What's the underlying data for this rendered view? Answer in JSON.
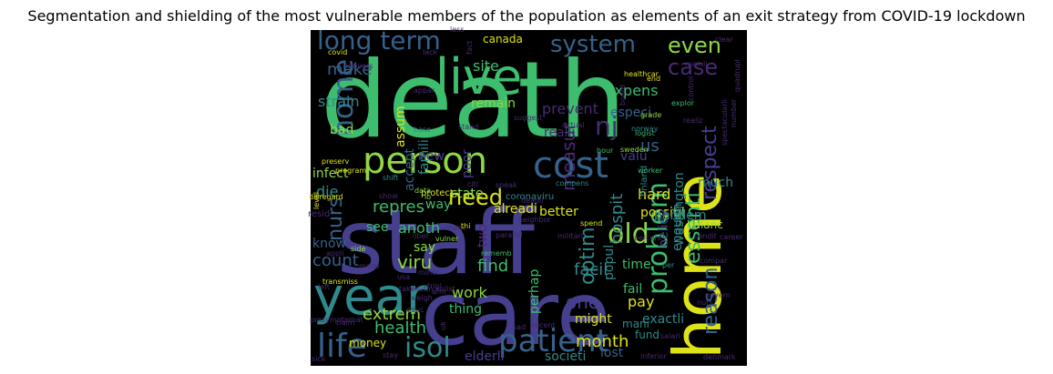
{
  "title": "Segmentation and shielding of the most vulnerable members of the population as elements of an exit strategy from COVID-19 lockdown",
  "background_color": "#000000",
  "palette": {
    "green": "#3dbd6e",
    "yellow": "#dde318",
    "indigo": "#453f8e",
    "teal": "#2f8a8c",
    "blue": "#35618b",
    "purple": "#482b72",
    "lime": "#8fd744"
  },
  "words": [
    {
      "text": "death",
      "color": "green"
    },
    {
      "text": "staff",
      "color": "indigo"
    },
    {
      "text": "care",
      "color": "indigo"
    },
    {
      "text": "home",
      "color": "yellow"
    },
    {
      "text": "year",
      "color": "teal"
    },
    {
      "text": "live",
      "color": "green"
    },
    {
      "text": "person",
      "color": "lime"
    },
    {
      "text": "cost",
      "color": "blue"
    },
    {
      "text": "life",
      "color": "blue"
    },
    {
      "text": "patient",
      "color": "blue"
    },
    {
      "text": "isol",
      "color": "teal"
    },
    {
      "text": "home",
      "color": "blue"
    },
    {
      "text": "long term",
      "color": "blue"
    },
    {
      "text": "system",
      "color": "blue"
    },
    {
      "text": "even",
      "color": "lime"
    },
    {
      "text": "case",
      "color": "purple"
    },
    {
      "text": "nj",
      "color": "purple"
    },
    {
      "text": "need",
      "color": "yellow"
    },
    {
      "text": "old",
      "color": "lime"
    },
    {
      "text": "problem",
      "color": "green"
    },
    {
      "text": "respect",
      "color": "indigo"
    },
    {
      "text": "essenti",
      "color": "green"
    },
    {
      "text": "reason",
      "color": "blue"
    },
    {
      "text": "nurs",
      "color": "blue"
    },
    {
      "text": "make",
      "color": "blue"
    },
    {
      "text": "site",
      "color": "green"
    },
    {
      "text": "prevent",
      "color": "purple"
    },
    {
      "text": "expens",
      "color": "green"
    },
    {
      "text": "especi",
      "color": "blue"
    },
    {
      "text": "strain",
      "color": "teal"
    },
    {
      "text": "bad",
      "color": "lime"
    },
    {
      "text": "remain",
      "color": "lime"
    },
    {
      "text": "realli",
      "color": "purple"
    },
    {
      "text": "measur",
      "color": "purple"
    },
    {
      "text": "hard",
      "color": "yellow"
    },
    {
      "text": "possibl",
      "color": "yellow"
    },
    {
      "text": "us",
      "color": "blue"
    },
    {
      "text": "assum",
      "color": "yellow"
    },
    {
      "text": "accept",
      "color": "blue"
    },
    {
      "text": "new",
      "color": "indigo"
    },
    {
      "text": "famili",
      "color": "teal"
    },
    {
      "text": "poor",
      "color": "indigo"
    },
    {
      "text": "valu",
      "color": "indigo"
    },
    {
      "text": "infect",
      "color": "lime"
    },
    {
      "text": "die",
      "color": "teal"
    },
    {
      "text": "state",
      "color": "lime"
    },
    {
      "text": "pandem",
      "color": "teal"
    },
    {
      "text": "hospit",
      "color": "teal"
    },
    {
      "text": "much",
      "color": "teal"
    },
    {
      "text": "way",
      "color": "green"
    },
    {
      "text": "repres",
      "color": "green"
    },
    {
      "text": "alreadi",
      "color": "yellow"
    },
    {
      "text": "better",
      "color": "yellow"
    },
    {
      "text": "see",
      "color": "green"
    },
    {
      "text": "anoth",
      "color": "green"
    },
    {
      "text": "say",
      "color": "lime"
    },
    {
      "text": "two",
      "color": "purple"
    },
    {
      "text": "know",
      "color": "blue"
    },
    {
      "text": "count",
      "color": "blue"
    },
    {
      "text": "viru",
      "color": "lime"
    },
    {
      "text": "find",
      "color": "green"
    },
    {
      "text": "facil",
      "color": "teal"
    },
    {
      "text": "optim",
      "color": "teal"
    },
    {
      "text": "popul",
      "color": "teal"
    },
    {
      "text": "time",
      "color": "green"
    },
    {
      "text": "believ",
      "color": "indigo"
    },
    {
      "text": "enough",
      "color": "teal"
    },
    {
      "text": "washington",
      "color": "teal"
    },
    {
      "text": "balanc",
      "color": "lime"
    },
    {
      "text": "extrem",
      "color": "lime"
    },
    {
      "text": "health",
      "color": "green"
    },
    {
      "text": "money",
      "color": "yellow"
    },
    {
      "text": "work",
      "color": "lime"
    },
    {
      "text": "thing",
      "color": "green"
    },
    {
      "text": "perhap",
      "color": "green"
    },
    {
      "text": "one",
      "color": "indigo"
    },
    {
      "text": "fail",
      "color": "green"
    },
    {
      "text": "pay",
      "color": "yellow"
    },
    {
      "text": "might",
      "color": "yellow"
    },
    {
      "text": "exactli",
      "color": "teal"
    },
    {
      "text": "fund",
      "color": "teal"
    },
    {
      "text": "mani",
      "color": "teal"
    },
    {
      "text": "month",
      "color": "yellow"
    },
    {
      "text": "lost",
      "color": "blue"
    },
    {
      "text": "elderli",
      "color": "indigo"
    },
    {
      "text": "societi",
      "color": "teal"
    },
    {
      "text": "canada",
      "color": "yellow"
    },
    {
      "text": "coronaviru",
      "color": "teal"
    },
    {
      "text": "protect",
      "color": "yellow"
    },
    {
      "text": "resid",
      "color": "purple"
    },
    {
      "text": "shift",
      "color": "teal"
    },
    {
      "text": "disregard",
      "color": "yellow"
    },
    {
      "text": "hour",
      "color": "green"
    },
    {
      "text": "logist",
      "color": "green"
    },
    {
      "text": "grade",
      "color": "lime"
    },
    {
      "text": "worker",
      "color": "green"
    },
    {
      "text": "sweden",
      "color": "lime"
    },
    {
      "text": "finland",
      "color": "teal"
    },
    {
      "text": "healthcar",
      "color": "yellow"
    },
    {
      "text": "explor",
      "color": "green"
    },
    {
      "text": "control",
      "color": "purple"
    },
    {
      "text": "suggest",
      "color": "purple"
    },
    {
      "text": "actual",
      "color": "purple"
    },
    {
      "text": "board",
      "color": "purple"
    },
    {
      "text": "lack",
      "color": "purple"
    },
    {
      "text": "fact",
      "color": "purple"
    },
    {
      "text": "end",
      "color": "yellow"
    },
    {
      "text": "norway",
      "color": "teal"
    },
    {
      "text": "realiz",
      "color": "purple"
    },
    {
      "text": "stand",
      "color": "purple"
    },
    {
      "text": "base",
      "color": "teal"
    },
    {
      "text": "preserv",
      "color": "yellow"
    },
    {
      "text": "program",
      "color": "yellow"
    },
    {
      "text": "covid",
      "color": "yellow"
    },
    {
      "text": "appar",
      "color": "purple"
    },
    {
      "text": "mainli",
      "color": "purple"
    },
    {
      "text": "clear",
      "color": "purple"
    },
    {
      "text": "less",
      "color": "purple"
    },
    {
      "text": "convers",
      "color": "purple"
    },
    {
      "text": "quadrupl",
      "color": "purple"
    },
    {
      "text": "number",
      "color": "purple"
    },
    {
      "text": "spectacularli",
      "color": "purple"
    },
    {
      "text": "speak",
      "color": "purple"
    },
    {
      "text": "show",
      "color": "purple"
    },
    {
      "text": "citi",
      "color": "purple"
    },
    {
      "text": "data",
      "color": "lime"
    },
    {
      "text": "lo",
      "color": "lime"
    },
    {
      "text": "compens",
      "color": "teal"
    },
    {
      "text": "parallel",
      "color": "purple"
    },
    {
      "text": "neighbor",
      "color": "purple"
    },
    {
      "text": "deadli",
      "color": "purple"
    },
    {
      "text": "condit",
      "color": "purple"
    },
    {
      "text": "career",
      "color": "purple"
    },
    {
      "text": "militari",
      "color": "purple"
    },
    {
      "text": "liber",
      "color": "purple"
    },
    {
      "text": "side",
      "color": "lime"
    },
    {
      "text": "made",
      "color": "purple"
    },
    {
      "text": "chanc",
      "color": "purple"
    },
    {
      "text": "thi",
      "color": "yellow"
    },
    {
      "text": "vulner",
      "color": "lime"
    },
    {
      "text": "rememb",
      "color": "green"
    },
    {
      "text": "appli",
      "color": "purple"
    },
    {
      "text": "left",
      "color": "purple"
    },
    {
      "text": "spend",
      "color": "yellow"
    },
    {
      "text": "per",
      "color": "teal"
    },
    {
      "text": "compar",
      "color": "purple"
    },
    {
      "text": "percent",
      "color": "purple"
    },
    {
      "text": "transmiss",
      "color": "yellow"
    },
    {
      "text": "usa",
      "color": "purple"
    },
    {
      "text": "minor",
      "color": "purple"
    },
    {
      "text": "tripl",
      "color": "purple"
    },
    {
      "text": "weigh",
      "color": "purple"
    },
    {
      "text": "educ",
      "color": "purple"
    },
    {
      "text": "routin",
      "color": "purple"
    },
    {
      "text": "take",
      "color": "purple"
    },
    {
      "text": "enlist",
      "color": "purple"
    },
    {
      "text": "arm",
      "color": "purple"
    },
    {
      "text": "nurs",
      "color": "purple"
    },
    {
      "text": "govern",
      "color": "purple"
    },
    {
      "text": "claim",
      "color": "purple"
    },
    {
      "text": "uk",
      "color": "purple"
    },
    {
      "text": "sad",
      "color": "purple"
    },
    {
      "text": "recent",
      "color": "purple"
    },
    {
      "text": "salari",
      "color": "purple"
    },
    {
      "text": "sick",
      "color": "purple"
    },
    {
      "text": "stay",
      "color": "purple"
    },
    {
      "text": "inferior",
      "color": "purple"
    },
    {
      "text": "denmark",
      "color": "purple"
    },
    {
      "text": "presymptomat",
      "color": "purple"
    },
    {
      "text": "level",
      "color": "yellow"
    },
    {
      "text": "underli",
      "color": "purple"
    },
    {
      "text": "succumb",
      "color": "purple"
    }
  ]
}
